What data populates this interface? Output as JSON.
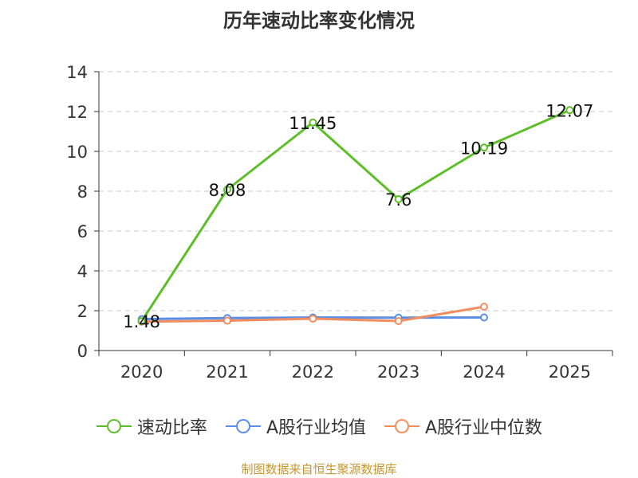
{
  "chart_data": {
    "type": "line",
    "title": "历年速动比率变化情况",
    "xlabel": "",
    "ylabel": "",
    "categories": [
      "2020",
      "2021",
      "2022",
      "2023",
      "2024",
      "2025"
    ],
    "ylim": [
      0,
      14
    ],
    "yticks": [
      0,
      2,
      4,
      6,
      8,
      10,
      12,
      14
    ],
    "grid": true,
    "legend_position": "bottom",
    "series": [
      {
        "name": "速动比率",
        "color": "#5cbf2a",
        "values": [
          1.48,
          8.08,
          11.45,
          7.6,
          10.19,
          12.07
        ],
        "labels": [
          "1.48",
          "8.08",
          "11.45",
          "7.6",
          "10.19",
          "12.07"
        ]
      },
      {
        "name": "A股行业均值",
        "color": "#5b8ee6",
        "values": [
          1.58,
          1.63,
          1.66,
          1.65,
          1.66,
          null
        ]
      },
      {
        "name": "A股行业中位数",
        "color": "#f28e5d",
        "values": [
          1.45,
          1.5,
          1.6,
          1.48,
          2.2,
          null
        ]
      }
    ]
  },
  "source_text": "制图数据来自恒生聚源数据库"
}
